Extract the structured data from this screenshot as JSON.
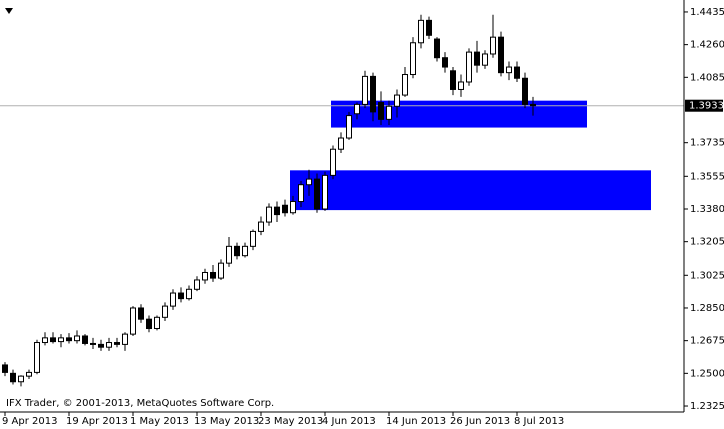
{
  "chart_data": {
    "type": "candlestick",
    "watermark": "IFX Trader, © 2001-2013, MetaQuotes Software Corp.",
    "categories": [
      "9 Apr 2013",
      null,
      null,
      null,
      null,
      null,
      null,
      null,
      "19 Apr 2013",
      null,
      null,
      null,
      null,
      null,
      null,
      null,
      "1 May 2013",
      null,
      null,
      null,
      null,
      null,
      null,
      null,
      "13 May 2013",
      null,
      null,
      null,
      null,
      null,
      null,
      null,
      "23 May 2013",
      null,
      null,
      null,
      null,
      null,
      null,
      null,
      "4 Jun 2013",
      null,
      null,
      null,
      null,
      null,
      null,
      null,
      "14 Jun 2013",
      null,
      null,
      null,
      null,
      null,
      null,
      null,
      "26 Jun 2013",
      null,
      null,
      null,
      null,
      null,
      null,
      null,
      "8 Jul 2013",
      null,
      null
    ],
    "open": [
      1.2545,
      1.25,
      1.2455,
      1.2485,
      1.2505,
      1.2665,
      1.269,
      1.267,
      1.269,
      1.2675,
      1.27,
      1.266,
      1.2655,
      1.264,
      1.2665,
      1.2655,
      1.271,
      1.285,
      1.279,
      1.274,
      1.28,
      1.286,
      1.293,
      1.29,
      1.295,
      1.3,
      1.304,
      1.301,
      1.309,
      1.318,
      1.313,
      1.318,
      1.326,
      1.331,
      1.339,
      1.34,
      1.336,
      1.342,
      1.351,
      1.354,
      1.338,
      1.356,
      1.37,
      1.376,
      1.389,
      1.394,
      1.409,
      1.395,
      1.386,
      1.393,
      1.399,
      1.41,
      1.427,
      1.439,
      1.429,
      1.419,
      1.412,
      1.402,
      1.406,
      1.422,
      1.415,
      1.421,
      1.43,
      1.411,
      1.414,
      1.408,
      1.394
    ],
    "high": [
      1.256,
      1.252,
      1.249,
      1.252,
      1.268,
      1.272,
      1.272,
      1.271,
      1.2715,
      1.273,
      1.271,
      1.269,
      1.268,
      1.269,
      1.269,
      1.272,
      1.286,
      1.287,
      1.281,
      1.281,
      1.288,
      1.295,
      1.296,
      1.297,
      1.302,
      1.306,
      1.308,
      1.311,
      1.323,
      1.32,
      1.32,
      1.327,
      1.334,
      1.341,
      1.342,
      1.343,
      1.345,
      1.353,
      1.359,
      1.357,
      1.358,
      1.372,
      1.379,
      1.39,
      1.395,
      1.412,
      1.411,
      1.401,
      1.396,
      1.402,
      1.414,
      1.43,
      1.442,
      1.441,
      1.43,
      1.422,
      1.414,
      1.41,
      1.424,
      1.428,
      1.423,
      1.442,
      1.433,
      1.417,
      1.417,
      1.411,
      1.398
    ],
    "low": [
      1.2485,
      1.244,
      1.243,
      1.247,
      1.2495,
      1.265,
      1.266,
      1.264,
      1.266,
      1.266,
      1.265,
      1.263,
      1.262,
      1.262,
      1.264,
      1.262,
      1.27,
      1.277,
      1.272,
      1.273,
      1.278,
      1.284,
      1.288,
      1.289,
      1.294,
      1.298,
      1.299,
      1.3,
      1.307,
      1.311,
      1.312,
      1.316,
      1.324,
      1.329,
      1.331,
      1.334,
      1.335,
      1.339,
      1.345,
      1.336,
      1.337,
      1.354,
      1.368,
      1.375,
      1.386,
      1.392,
      1.385,
      1.383,
      1.383,
      1.387,
      1.398,
      1.408,
      1.424,
      1.429,
      1.417,
      1.411,
      1.399,
      1.398,
      1.404,
      1.411,
      1.413,
      1.419,
      1.409,
      1.407,
      1.406,
      1.392,
      1.388
    ],
    "close": [
      1.2505,
      1.2455,
      1.2485,
      1.2505,
      1.2665,
      1.269,
      1.267,
      1.269,
      1.2675,
      1.27,
      1.266,
      1.2655,
      1.264,
      1.2665,
      1.2655,
      1.271,
      1.285,
      1.279,
      1.274,
      1.28,
      1.286,
      1.293,
      1.29,
      1.295,
      1.3,
      1.304,
      1.301,
      1.309,
      1.318,
      1.313,
      1.318,
      1.326,
      1.331,
      1.339,
      1.335,
      1.336,
      1.342,
      1.351,
      1.354,
      1.338,
      1.356,
      1.37,
      1.376,
      1.388,
      1.394,
      1.409,
      1.39,
      1.386,
      1.393,
      1.399,
      1.41,
      1.427,
      1.439,
      1.431,
      1.419,
      1.414,
      1.402,
      1.406,
      1.422,
      1.415,
      1.421,
      1.43,
      1.411,
      1.414,
      1.408,
      1.394,
      1.3933
    ],
    "up_color": "#ffffff",
    "down_color": "#000000",
    "zones": [
      {
        "high": 1.3587,
        "low": 1.3374,
        "color": "#0000ff"
      },
      {
        "high": 1.396,
        "low": 1.3816,
        "color": "#0000ff"
      }
    ],
    "last_price": 1.3933,
    "ylim": [
      1.2293,
      1.4499
    ],
    "yticks": [
      1.4435,
      {
        "value": 1.426,
        "label": "1.4260"
      },
      1.4085,
      1.3735,
      1.3555,
      {
        "value": 1.338,
        "label": "1.3380"
      },
      1.3205,
      1.3025,
      {
        "value": 1.285,
        "label": "1.2850"
      },
      1.2675,
      {
        "value": 1.25,
        "label": "1.2500"
      },
      1.2325
    ]
  }
}
